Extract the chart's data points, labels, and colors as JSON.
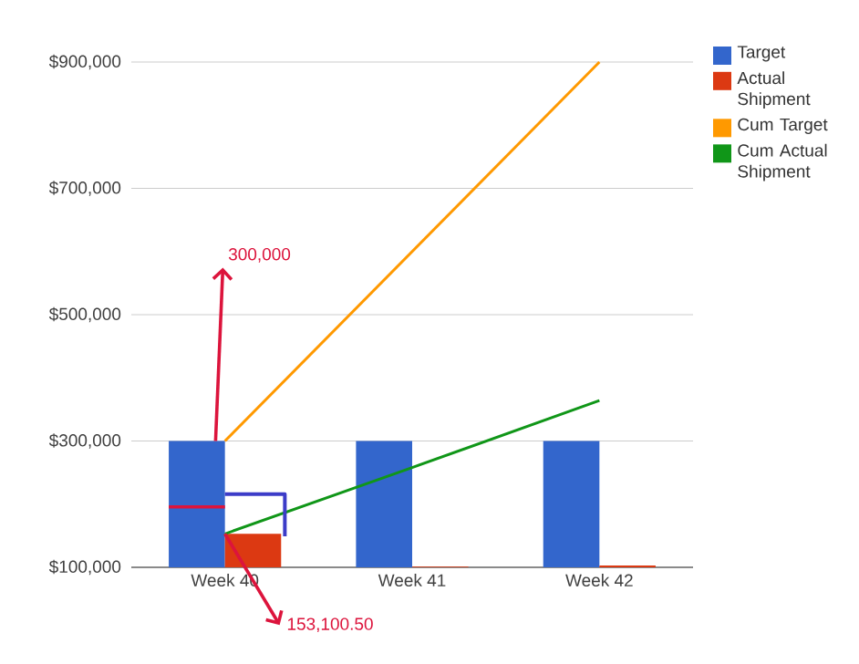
{
  "chart_data": {
    "type": "bar",
    "categories": [
      "Week 40",
      "Week 41",
      "Week 42"
    ],
    "series": [
      {
        "name": "Target",
        "color": "#3366cc",
        "values": [
          300000,
          300000,
          300000
        ]
      },
      {
        "name": "Actual Shipment",
        "color": "#dc3912",
        "values": [
          153000,
          101000,
          103000
        ]
      },
      {
        "name": "Cum Target",
        "type": "line",
        "color": "#ff9900",
        "values": [
          300000,
          600000,
          900000
        ]
      },
      {
        "name": "Cum Actual Shipment",
        "type": "line",
        "color": "#109618",
        "values": [
          153000,
          258000,
          364000
        ]
      }
    ],
    "ylim": [
      100000,
      900000
    ],
    "yticks": [
      {
        "value": 100000,
        "label": "$100,000"
      },
      {
        "value": 300000,
        "label": "$300,000"
      },
      {
        "value": 500000,
        "label": "$500,000"
      },
      {
        "value": 700000,
        "label": "$700,000"
      },
      {
        "value": 900000,
        "label": "$900,000"
      }
    ],
    "grid": "y",
    "legend": "right",
    "marker": "none",
    "annotations": [
      {
        "text": "300,000",
        "x": "Week 40",
        "y": 300000
      },
      {
        "text": "153,100.50",
        "x": "Week 40",
        "y": 153100.5
      }
    ]
  }
}
